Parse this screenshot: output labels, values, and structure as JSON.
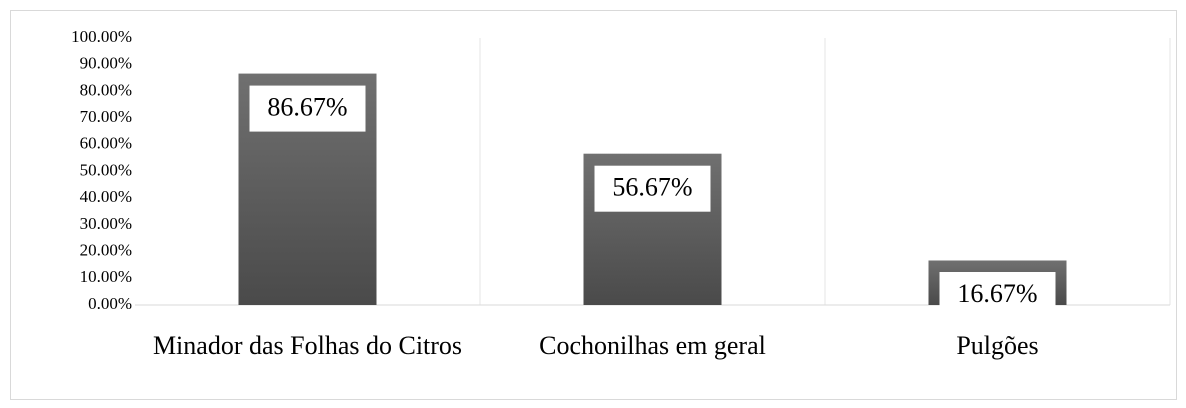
{
  "chart_data": {
    "type": "bar",
    "categories": [
      "Minador das Folhas do Citros",
      "Cochonilhas em geral",
      "Pulgões"
    ],
    "values": [
      86.67,
      56.67,
      16.67
    ],
    "value_labels": [
      "86.67%",
      "56.67%",
      "16.67%"
    ],
    "color": "#555555",
    "ylim": [
      0,
      100
    ],
    "yticks": [
      {
        "value": 0,
        "label": "0.00%"
      },
      {
        "value": 10,
        "label": "10.00%"
      },
      {
        "value": 20,
        "label": "20.00%"
      },
      {
        "value": 30,
        "label": "30.00%"
      },
      {
        "value": 40,
        "label": "40.00%"
      },
      {
        "value": 50,
        "label": "50.00%"
      },
      {
        "value": 60,
        "label": "60.00%"
      },
      {
        "value": 70,
        "label": "70.00%"
      },
      {
        "value": 80,
        "label": "80.00%"
      },
      {
        "value": 90,
        "label": "90.00%"
      },
      {
        "value": 100,
        "label": "100.00%"
      }
    ],
    "grid": false
  }
}
